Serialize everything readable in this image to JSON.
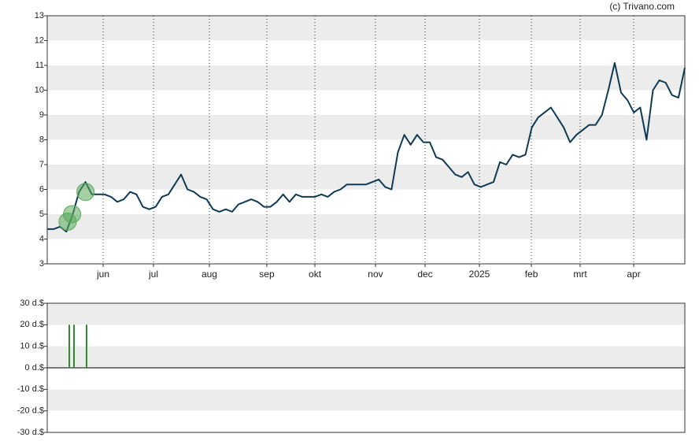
{
  "credit": "(c) Trivano.com",
  "chart_data": [
    {
      "type": "line",
      "color": "#0f3a55",
      "xlim": [
        0,
        100
      ],
      "xticks": [
        {
          "value": 8.77,
          "label": "jun"
        },
        {
          "value": 16.67,
          "label": "jul"
        },
        {
          "value": 25.43,
          "label": "aug"
        },
        {
          "value": 34.44,
          "label": "sep"
        },
        {
          "value": 41.98,
          "label": "okt"
        },
        {
          "value": 51.48,
          "label": "nov"
        },
        {
          "value": 59.26,
          "label": "dec"
        },
        {
          "value": 67.78,
          "label": "2025"
        },
        {
          "value": 75.93,
          "label": "feb"
        },
        {
          "value": 83.58,
          "label": "mrt"
        },
        {
          "value": 91.98,
          "label": "apr"
        }
      ],
      "ylim": [
        3,
        13
      ],
      "yticks": [
        3,
        4,
        5,
        6,
        7,
        8,
        9,
        10,
        11,
        12,
        13
      ],
      "values": [
        4.4,
        4.4,
        4.5,
        4.3,
        5.0,
        5.9,
        6.3,
        5.8,
        5.8,
        5.8,
        5.7,
        5.5,
        5.6,
        5.9,
        5.8,
        5.3,
        5.2,
        5.3,
        5.7,
        5.8,
        6.2,
        6.6,
        6.0,
        5.9,
        5.7,
        5.6,
        5.2,
        5.1,
        5.2,
        5.1,
        5.4,
        5.5,
        5.6,
        5.5,
        5.3,
        5.3,
        5.5,
        5.8,
        5.5,
        5.8,
        5.7,
        5.7,
        5.7,
        5.8,
        5.7,
        5.9,
        6.0,
        6.2,
        6.2,
        6.2,
        6.2,
        6.3,
        6.4,
        6.1,
        6.0,
        7.5,
        8.2,
        7.8,
        8.2,
        7.9,
        7.9,
        7.3,
        7.2,
        6.9,
        6.6,
        6.5,
        6.7,
        6.2,
        6.1,
        6.2,
        6.3,
        7.1,
        7.0,
        7.4,
        7.3,
        7.4,
        8.5,
        8.9,
        9.1,
        9.3,
        8.9,
        8.5,
        7.9,
        8.2,
        8.4,
        8.6,
        8.6,
        9.0,
        10.0,
        11.1,
        9.9,
        9.6,
        9.1,
        9.3,
        8.0,
        10.0,
        10.4,
        10.3,
        9.8,
        9.7,
        10.9
      ],
      "markers": {
        "color": "#5aaa5a",
        "x": [
          3.2,
          3.9,
          6.0
        ],
        "values": [
          4.7,
          5.0,
          5.9
        ]
      }
    },
    {
      "type": "bar",
      "color": "#2e8b2e",
      "xlim": [
        0,
        100
      ],
      "ylim": [
        -30,
        30
      ],
      "yticks": [
        {
          "value": 30,
          "label": "30 d.$"
        },
        {
          "value": 20,
          "label": "20 d.$"
        },
        {
          "value": 10,
          "label": "10 d.$"
        },
        {
          "value": 0,
          "label": "0 d.$"
        },
        {
          "value": -10,
          "label": "-10 d.$"
        },
        {
          "value": -20,
          "label": "-20 d.$"
        },
        {
          "value": -30,
          "label": "-30 d.$"
        }
      ],
      "x": [
        3.46,
        4.2,
        6.17
      ],
      "values": [
        20,
        20,
        20
      ]
    }
  ]
}
